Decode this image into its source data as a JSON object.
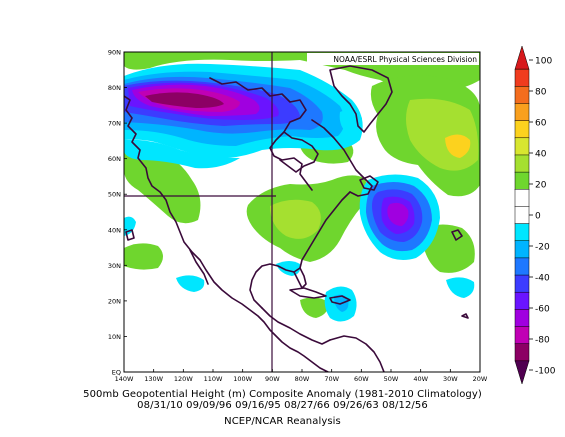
{
  "map": {
    "credit": "NOAA/ESRL Physical Sciences Division",
    "lat_labels": [
      "90N",
      "80N",
      "70N",
      "60N",
      "50N",
      "40N",
      "30N",
      "20N",
      "10N",
      "EQ"
    ],
    "lon_labels": [
      "140W",
      "130W",
      "120W",
      "110W",
      "100W",
      "90W",
      "80W",
      "70W",
      "60W",
      "50W",
      "40W",
      "30W",
      "20W"
    ],
    "extent": {
      "lon": [
        -140,
        -20
      ],
      "lat": [
        0,
        90
      ]
    },
    "grid_lines": {
      "lat": 50,
      "lon": -90
    }
  },
  "colorbar": {
    "ticks": [
      "100",
      "80",
      "60",
      "40",
      "20",
      "0",
      "-20",
      "-40",
      "-60",
      "-80",
      "-100"
    ],
    "colors": [
      "#d7191c",
      "#f03c1e",
      "#f46d1e",
      "#f9a01e",
      "#fcd21e",
      "#d8e630",
      "#a5e030",
      "#6fd62e",
      "#ffffff",
      "#ffffff",
      "#00e6ff",
      "#00b4ff",
      "#1e78ff",
      "#3c3cff",
      "#6a14ff",
      "#a000e0",
      "#c000b4",
      "#8c0064",
      "#500050"
    ]
  },
  "caption": {
    "line1": "500mb Geopotential Height (m) Composite Anomaly (1981-2010 Climatology)",
    "line2": "08/31/10 09/09/96 09/16/95 08/27/66 09/26/63 08/12/56",
    "line3": "NCEP/NCAR Reanalysis"
  }
}
